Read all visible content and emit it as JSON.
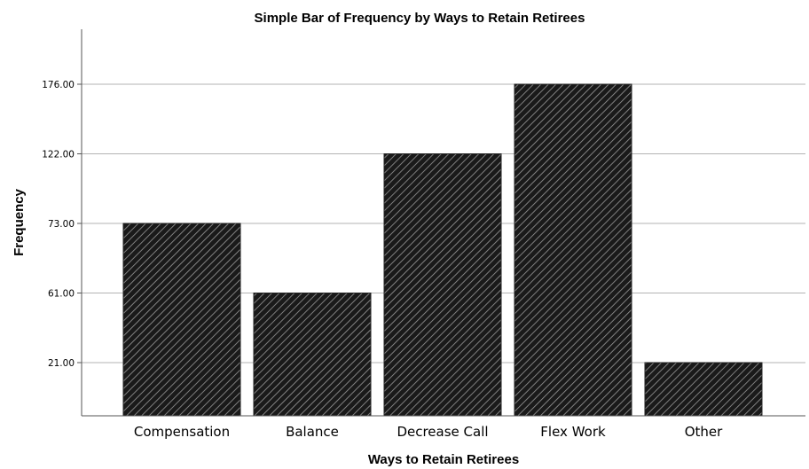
{
  "chart_data": {
    "type": "bar",
    "title": "Simple Bar of Frequency by Ways to Retain Retirees",
    "xlabel": "Ways to Retain Retirees",
    "ylabel": "Frequency",
    "categories": [
      "Compensation",
      "Balance",
      "Decrease Call",
      "Flex Work",
      "Other"
    ],
    "values": [
      73,
      61,
      122,
      176,
      21
    ],
    "y_tick_labels": [
      "21.00",
      "61.00",
      "73.00",
      "122.00",
      "176.00"
    ],
    "y_scale": "ordinal-by-value",
    "grid": true,
    "bar_color": "#1a1a1a",
    "hatch_color": "#9a9a9a",
    "legend": "none"
  }
}
